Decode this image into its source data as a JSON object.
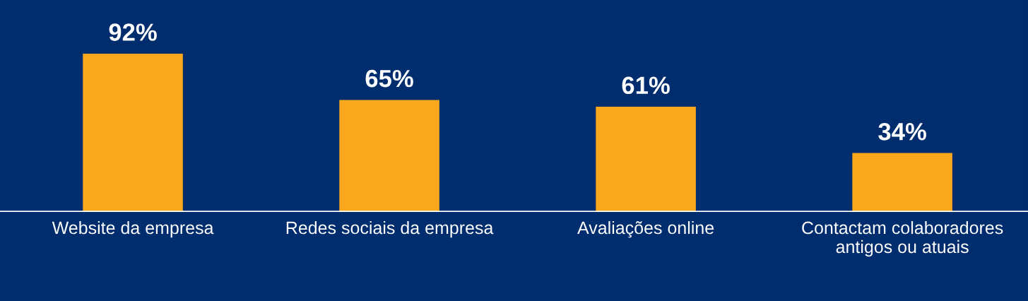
{
  "chart_data": {
    "type": "bar",
    "categories": [
      "Website da empresa",
      "Redes sociais da empresa",
      "Avaliações online",
      "Contactam colaboradores\nantigos ou atuais"
    ],
    "values": [
      92,
      65,
      61,
      34
    ],
    "value_labels": [
      "92%",
      "65%",
      "61%",
      "34%"
    ],
    "color": "#f9a81e",
    "grid": false,
    "legend": false
  }
}
